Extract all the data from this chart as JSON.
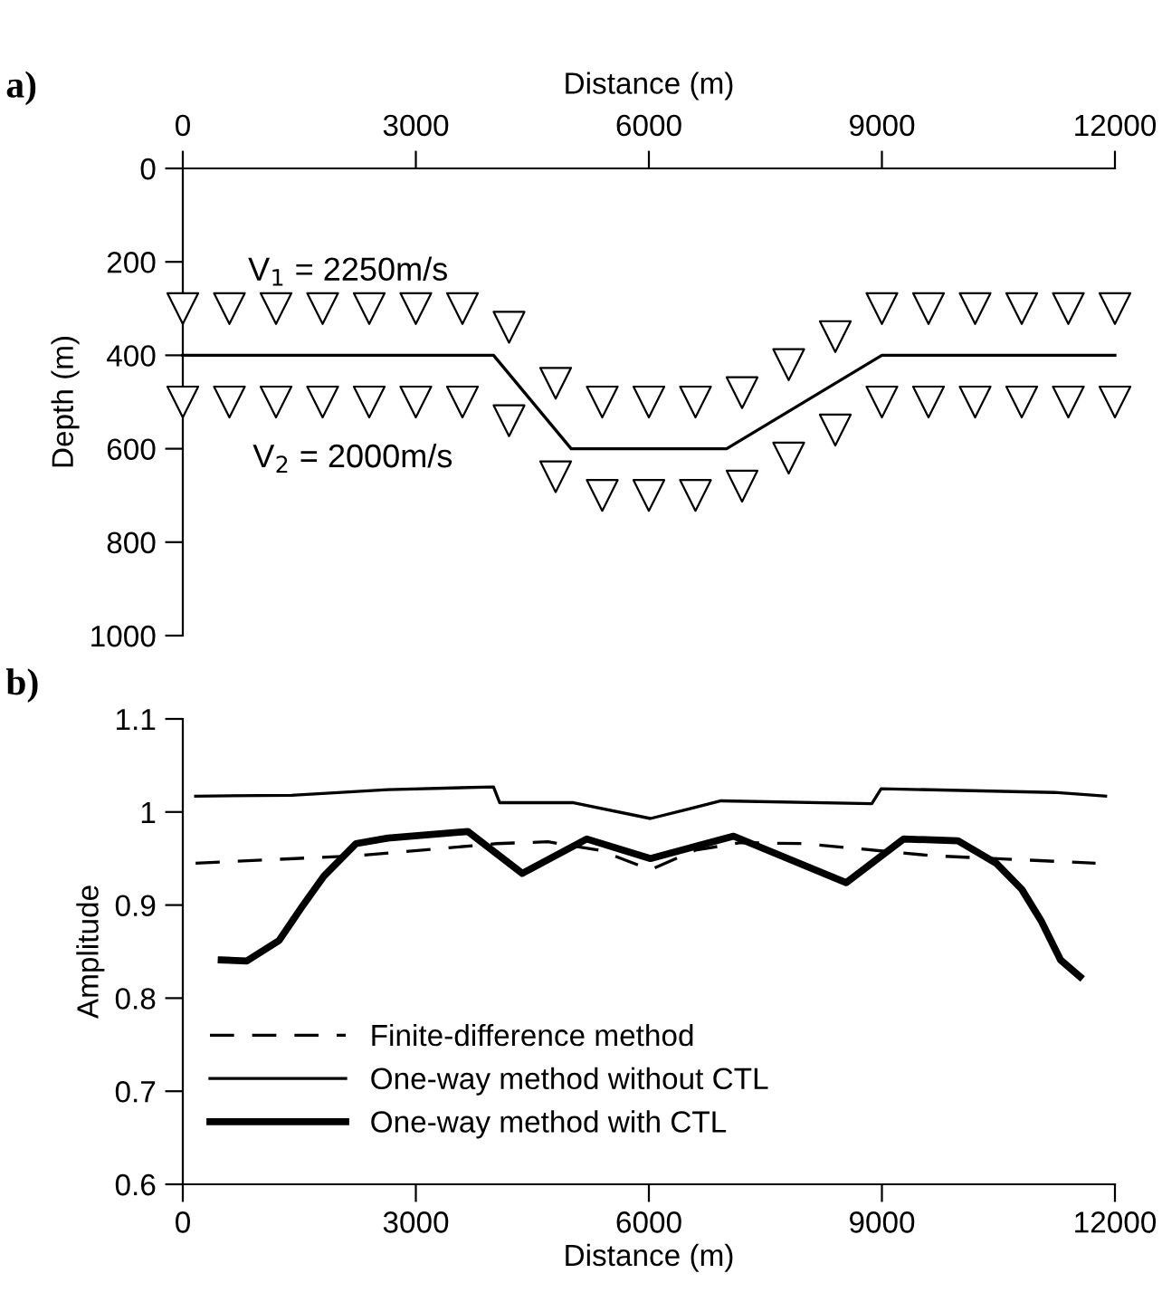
{
  "chart_data": [
    {
      "type": "line",
      "title": "a)",
      "xlabel": "Distance (m)",
      "ylabel": "Depth (m)",
      "xlim": [
        0,
        12000
      ],
      "xticks": [
        0,
        3000,
        6000,
        9000,
        12000
      ],
      "ylim": [
        1000,
        0
      ],
      "yticks": [
        0,
        200,
        400,
        600,
        800,
        1000
      ],
      "grid": false,
      "legend": false,
      "annotations": [
        "V$_{1}$ = 2250m/s",
        "V$_{2}$ = 2000m/s"
      ],
      "series": [
        {
          "color": "#000000",
          "line_style": "solid",
          "marker": "none",
          "x": [
            0,
            4000,
            5000,
            7000,
            9000,
            12000
          ],
          "values": [
            400,
            400,
            600,
            600,
            400,
            400
          ]
        },
        {
          "type": "scatter",
          "color": "#000000",
          "marker": "triangle",
          "x": [
            0,
            600,
            1200,
            1800,
            2400,
            3000,
            3600,
            4200,
            4800,
            5400,
            6000,
            6600,
            7200,
            7800,
            8400,
            9000,
            9600,
            10200,
            10800,
            11400,
            12000
          ],
          "values": [
            300,
            300,
            300,
            300,
            300,
            300,
            300,
            340,
            460,
            500,
            500,
            500,
            480,
            420,
            360,
            300,
            300,
            300,
            300,
            300,
            300
          ]
        },
        {
          "type": "scatter",
          "color": "#000000",
          "marker": "triangle",
          "x": [
            0,
            600,
            1200,
            1800,
            2400,
            3000,
            3600,
            4200,
            4800,
            5400,
            6000,
            6600,
            7200,
            7800,
            8400,
            9000,
            9600,
            10200,
            10800,
            11400,
            12000
          ],
          "values": [
            500,
            500,
            500,
            500,
            500,
            500,
            500,
            540,
            660,
            700,
            700,
            700,
            680,
            620,
            560,
            500,
            500,
            500,
            500,
            500,
            500
          ]
        }
      ]
    },
    {
      "type": "line",
      "title": "b)",
      "xlabel": "Distance (m)",
      "ylabel": "Amplitude",
      "xlim": [
        0,
        12000
      ],
      "xticks": [
        0,
        3000,
        6000,
        9000,
        12000
      ],
      "ylim": [
        0.6,
        1.1
      ],
      "yticks": [
        0.6,
        0.7,
        0.8,
        0.9,
        1,
        1.1
      ],
      "grid": false,
      "legend": "bottom left",
      "series": [
        {
          "name": "Finite-difference method",
          "color": "#000000",
          "line_style": "dashed",
          "marker": "none",
          "x": [
            165,
            2230,
            4040,
            4700,
            5360,
            6020,
            6600,
            7180,
            8000,
            9650,
            11750
          ],
          "values": [
            0.945,
            0.953,
            0.966,
            0.968,
            0.959,
            0.938,
            0.959,
            0.967,
            0.966,
            0.953,
            0.945
          ]
        },
        {
          "name": "One-way method without CTL",
          "color": "#000000",
          "line_style": "solid",
          "marker": "none",
          "x": [
            165,
            1400,
            2640,
            4000,
            4080,
            5030,
            6020,
            6930,
            8870,
            8990,
            11220,
            11880
          ],
          "values": [
            1.017,
            1.018,
            1.024,
            1.027,
            1.01,
            1.01,
            0.993,
            1.012,
            1.009,
            1.025,
            1.021,
            1.017
          ]
        },
        {
          "name": "One-way method with CTL",
          "color": "#000000",
          "line_style": "solid",
          "marker": "none",
          "x": [
            495,
            825,
            1240,
            1525,
            1815,
            2230,
            2640,
            3670,
            4370,
            5200,
            6020,
            7090,
            8540,
            9280,
            9980,
            10470,
            10800,
            11050,
            11300,
            11550
          ],
          "values": [
            0.841,
            0.84,
            0.862,
            0.897,
            0.931,
            0.966,
            0.972,
            0.979,
            0.934,
            0.971,
            0.95,
            0.974,
            0.924,
            0.971,
            0.969,
            0.945,
            0.917,
            0.883,
            0.841,
            0.823
          ]
        }
      ]
    }
  ]
}
